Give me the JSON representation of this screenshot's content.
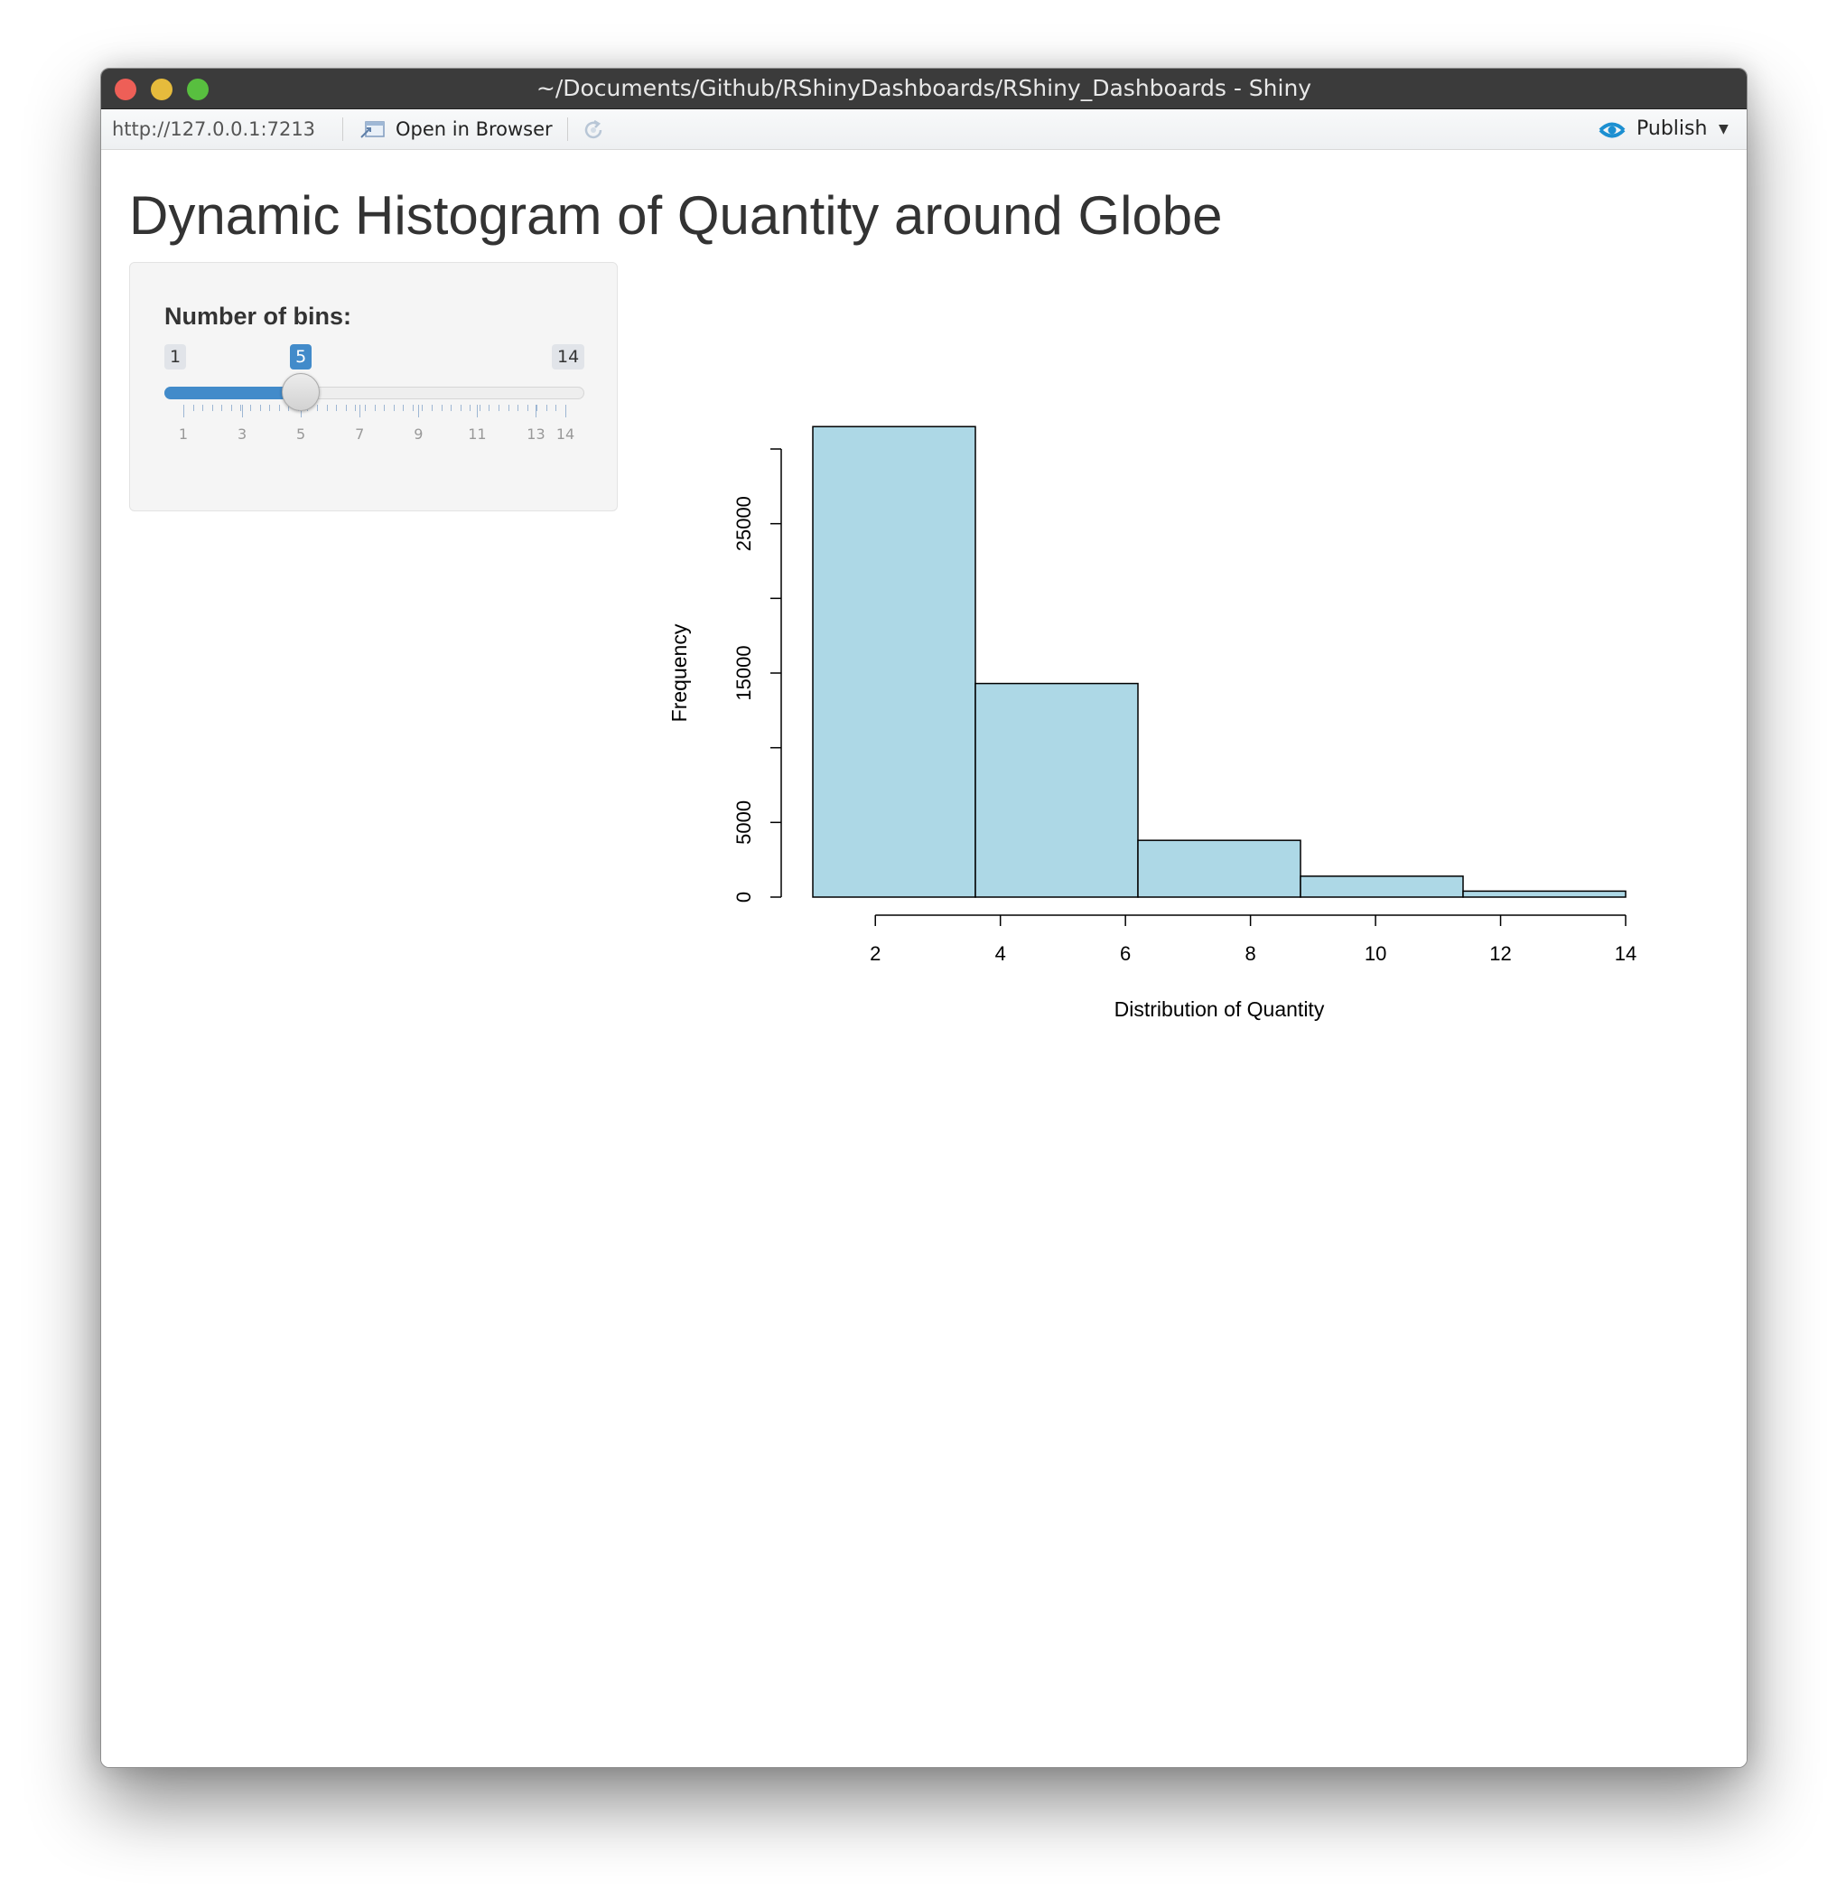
{
  "window": {
    "title": "~/Documents/Github/RShinyDashboards/RShiny_Dashboards - Shiny"
  },
  "toolbar": {
    "url": "http://127.0.0.1:7213",
    "open_in_browser_label": "Open in Browser",
    "open_in_browser_icon": "open-in-browser-icon",
    "refresh_icon": "refresh-icon",
    "publish_label": "Publish",
    "publish_icon": "rsconnect-publish-icon",
    "publish_color": "#1c8fd1"
  },
  "page": {
    "title": "Dynamic Histogram of Quantity around Globe"
  },
  "slider": {
    "label": "Number of bins:",
    "min": 1,
    "max": 14,
    "value": 5,
    "min_label": "1",
    "max_label": "14",
    "value_label": "5",
    "tick_labels": [
      "1",
      "3",
      "5",
      "7",
      "9",
      "11",
      "13",
      "14"
    ],
    "accent_color": "#428bca"
  },
  "chart_data": {
    "type": "bar",
    "bin_edges": [
      1,
      3.6,
      6.2,
      8.8,
      11.4,
      14
    ],
    "values": [
      31500,
      14300,
      3800,
      1400,
      400
    ],
    "xlabel": "Distribution of Quantity",
    "ylabel": "Frequency",
    "xlim": [
      1,
      14
    ],
    "ylim": [
      0,
      30000
    ],
    "x_ticks": [
      2,
      4,
      6,
      8,
      10,
      12,
      14
    ],
    "y_ticks": [
      0,
      5000,
      10000,
      15000,
      20000,
      25000,
      30000
    ],
    "y_tick_labels": [
      "0",
      "5000",
      "15000",
      "25000"
    ],
    "fill_color": "#add8e6",
    "border_color": "#000000",
    "grid": false,
    "legend": "none"
  }
}
